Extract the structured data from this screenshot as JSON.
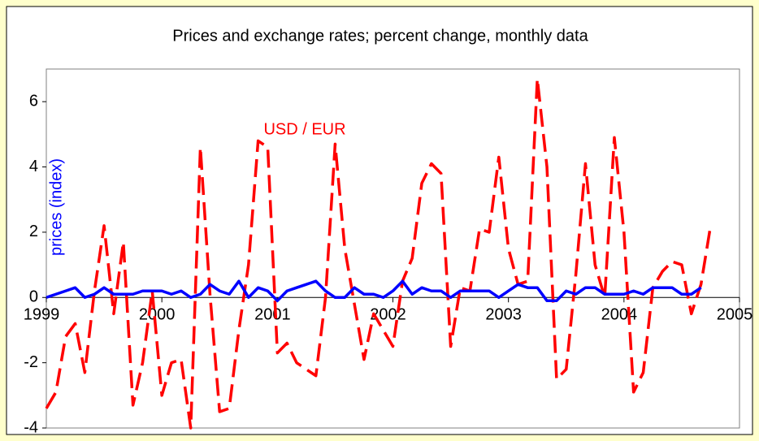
{
  "chart_data": {
    "type": "line",
    "title": "Prices and exchange rates; percent change, monthly data",
    "annotations": [
      "USD / EUR",
      "prices  (index)"
    ],
    "x": [
      0,
      1,
      2,
      3,
      4,
      5,
      6,
      7,
      8,
      9,
      10,
      11,
      12,
      13,
      14,
      15,
      16,
      17,
      18,
      19,
      20,
      21,
      22,
      23,
      24,
      25,
      26,
      27,
      28,
      29,
      30,
      31,
      32,
      33,
      34,
      35,
      36,
      37,
      38,
      39,
      40,
      41,
      42,
      43,
      44,
      45,
      46,
      47,
      48,
      49,
      50,
      51,
      52,
      53,
      54,
      55,
      56,
      57,
      58,
      59,
      60,
      61,
      62,
      63,
      64,
      65,
      66,
      67,
      68,
      69
    ],
    "series": [
      {
        "name": "USD / EUR",
        "color": "#ff0000",
        "dash": true,
        "values": [
          -3.4,
          -2.9,
          -1.2,
          -0.8,
          -2.3,
          0.2,
          2.2,
          -0.5,
          1.7,
          -3.3,
          -2.0,
          0.2,
          -3.0,
          -2.0,
          -1.9,
          -4.0,
          4.6,
          0.1,
          -3.5,
          -3.4,
          -1.0,
          1.0,
          4.8,
          4.6,
          -1.7,
          -1.4,
          -2.0,
          -2.2,
          -2.4,
          0.0,
          4.7,
          1.5,
          -0.2,
          -1.9,
          -0.5,
          -1.0,
          -1.5,
          0.5,
          1.2,
          3.5,
          4.1,
          3.8,
          -1.5,
          0.3,
          0.2,
          2.1,
          2.0,
          4.3,
          1.5,
          0.4,
          0.5,
          6.7,
          4.0,
          -2.5,
          -2.2,
          0.7,
          4.1,
          1.0,
          0.0,
          4.9,
          2.0,
          -2.9,
          -2.3,
          0.3,
          0.8,
          1.1,
          1.0,
          -0.5,
          0.4,
          2.2
        ]
      },
      {
        "name": "prices  (index)",
        "color": "#0000ff",
        "dash": false,
        "values": [
          0,
          0.1,
          0.2,
          0.3,
          0,
          0.1,
          0.3,
          0.1,
          0.1,
          0.1,
          0.2,
          0.2,
          0.2,
          0.1,
          0.2,
          0,
          0.1,
          0.4,
          0.2,
          0.1,
          0.5,
          0,
          0.3,
          0.2,
          -0.1,
          0.2,
          0.3,
          0.4,
          0.5,
          0.2,
          0,
          0,
          0.3,
          0.1,
          0.1,
          0,
          0.2,
          0.5,
          0.1,
          0.3,
          0.2,
          0.2,
          0,
          0.2,
          0.2,
          0.2,
          0.2,
          0,
          0.2,
          0.4,
          0.3,
          0.3,
          -0.1,
          -0.1,
          0.2,
          0.1,
          0.3,
          0.3,
          0.1,
          0.1,
          0.1,
          0.2,
          0.1,
          0.3,
          0.3,
          0.3,
          0.1,
          0.1,
          0.3,
          null
        ]
      }
    ],
    "xlim": [
      0,
      72
    ],
    "xticks": [
      {
        "value": 0,
        "label": "1999"
      },
      {
        "value": 12,
        "label": "2000"
      },
      {
        "value": 24,
        "label": "2001"
      },
      {
        "value": 36,
        "label": "2002"
      },
      {
        "value": 48,
        "label": "2003"
      },
      {
        "value": 60,
        "label": "2004"
      },
      {
        "value": 72,
        "label": "2005"
      }
    ],
    "ylim": [
      -4,
      7
    ],
    "yticks": [
      -4,
      -2,
      0,
      2,
      4,
      6
    ]
  }
}
